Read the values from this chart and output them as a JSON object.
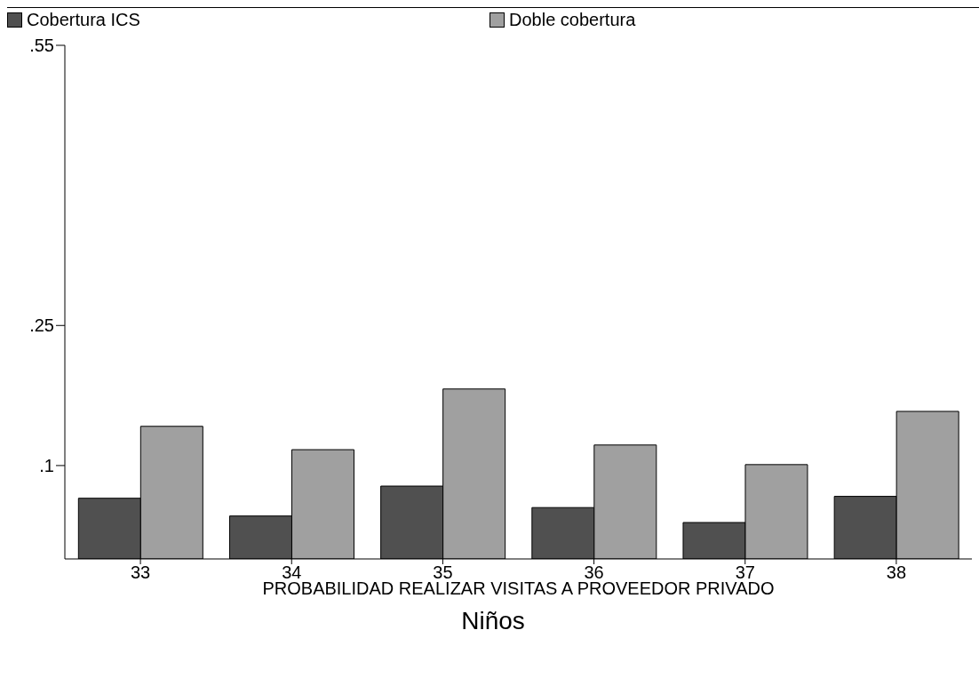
{
  "chart_data": {
    "type": "bar",
    "title": "Niños",
    "xlabel": "PROBABILIDAD REALIZAR VISITAS A PROVEEDOR PRIVADO",
    "categories": [
      "33",
      "34",
      "35",
      "36",
      "37",
      "38"
    ],
    "series": [
      {
        "name": "Cobertura ICS",
        "color": "#505050",
        "values": [
          0.065,
          0.046,
          0.078,
          0.055,
          0.039,
          0.067
        ]
      },
      {
        "name": "Doble cobertura",
        "color": "#a0a0a0",
        "values": [
          0.142,
          0.117,
          0.182,
          0.122,
          0.101,
          0.158
        ]
      }
    ],
    "ylim": [
      0,
      0.55
    ],
    "yticks": [
      {
        "value": 0.1,
        "label": ".1"
      },
      {
        "value": 0.25,
        "label": ".25"
      },
      {
        "value": 0.55,
        "label": ".55"
      }
    ],
    "grid": false,
    "legend": "top left"
  }
}
